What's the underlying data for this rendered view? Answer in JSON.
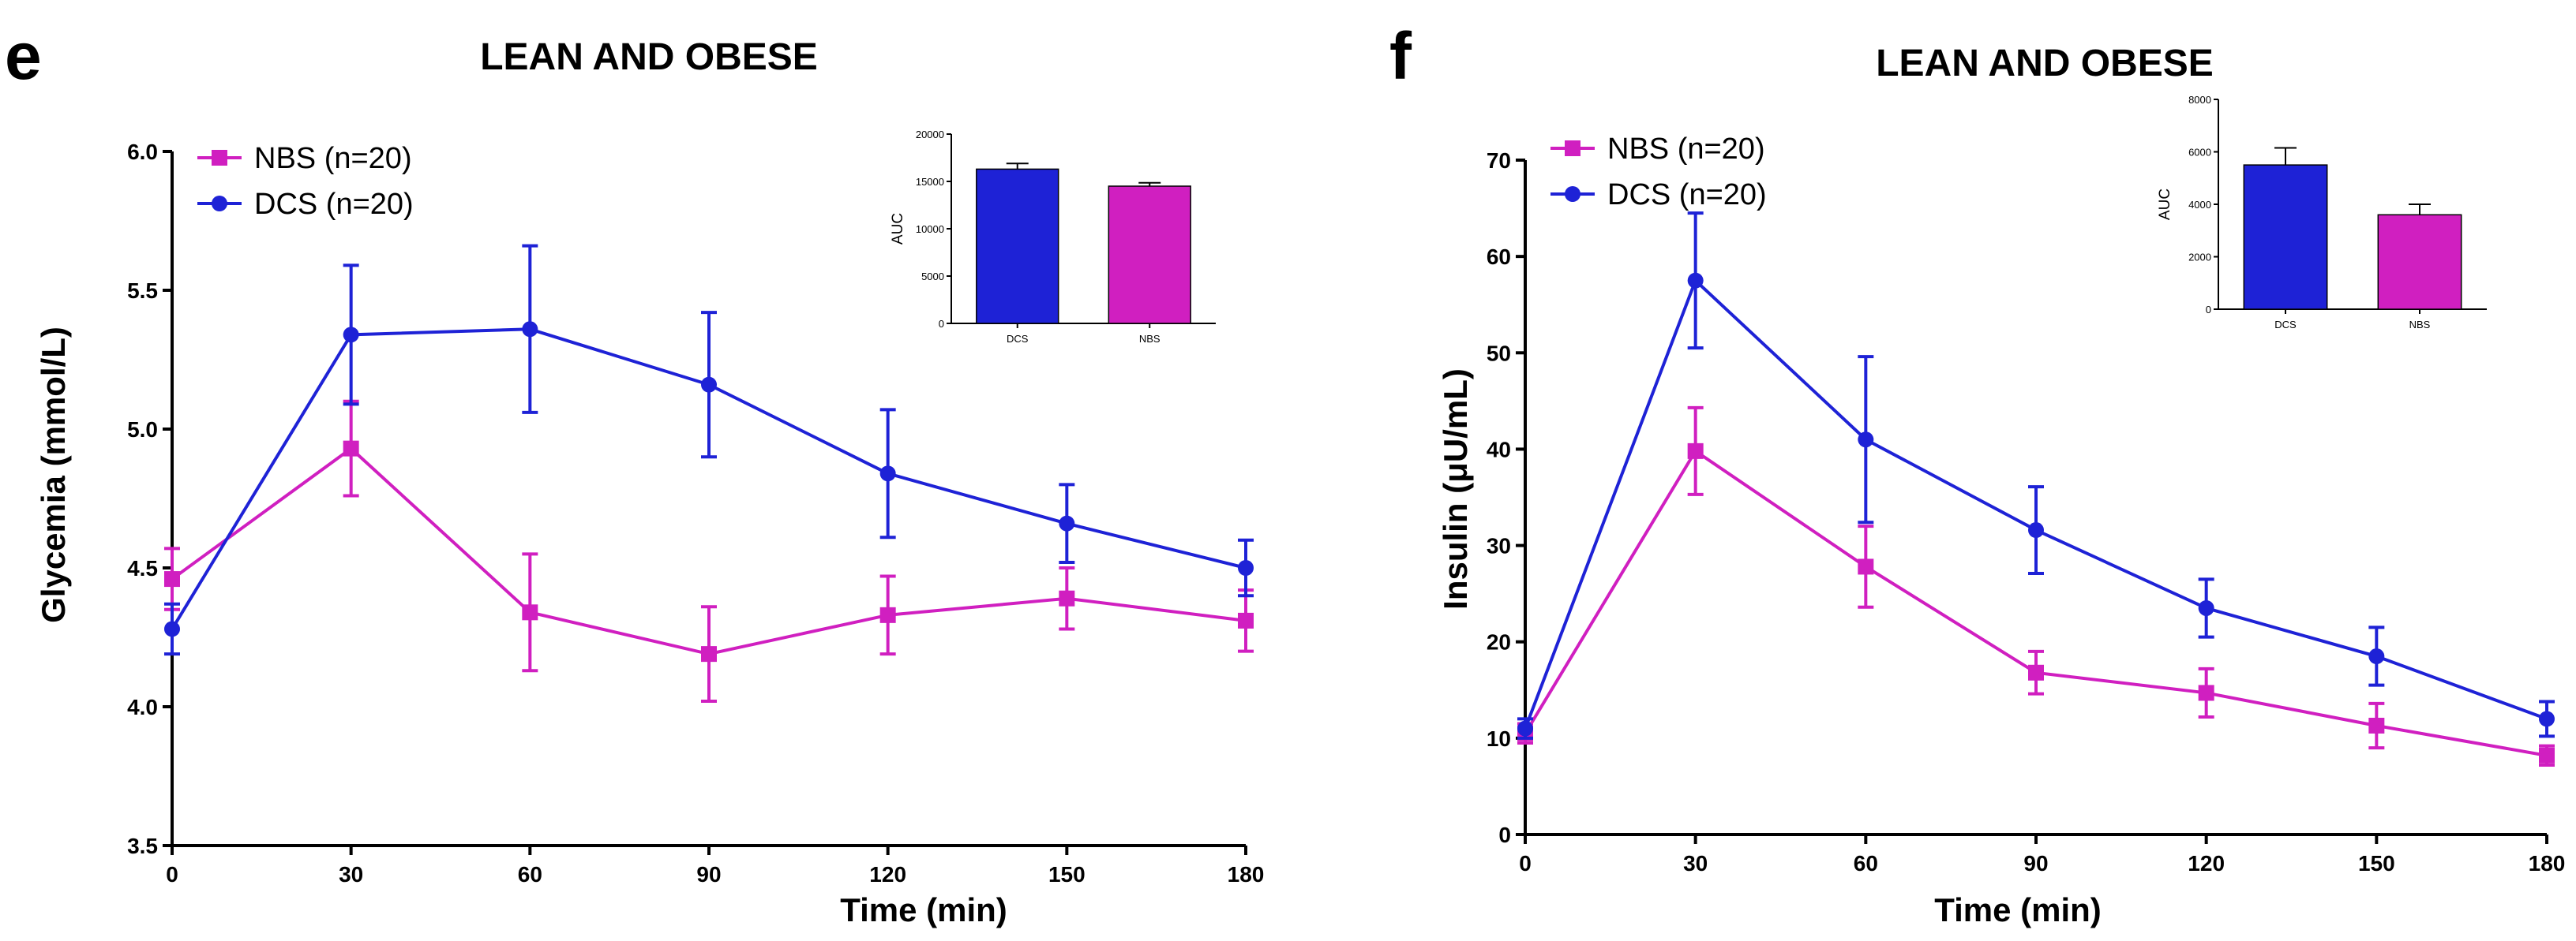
{
  "figure": {
    "panel_labels": [
      "e",
      "f"
    ]
  },
  "colors": {
    "nbs": "#d01fc0",
    "dcs": "#1e22d6"
  },
  "chart_data": [
    {
      "type": "line",
      "panel": "e",
      "title": "LEAN AND OBESE",
      "xlabel": "Time (min)",
      "ylabel": "Glycemia (mmol/L)",
      "x": [
        0,
        30,
        60,
        90,
        120,
        150,
        180
      ],
      "xticks": [
        "0",
        "30",
        "60",
        "90",
        "120",
        "150",
        "180"
      ],
      "xlim": [
        0,
        180
      ],
      "ylim": [
        3.5,
        6.0
      ],
      "yticks": [
        "3.5",
        "4.0",
        "4.5",
        "5.0",
        "5.5",
        "6.0"
      ],
      "legend_position": "top-left",
      "series": [
        {
          "name": "NBS (n=20)",
          "marker": "square",
          "color": "#d01fc0",
          "values": [
            4.46,
            4.93,
            4.34,
            4.19,
            4.33,
            4.39,
            4.31
          ],
          "errors": [
            0.11,
            0.17,
            0.21,
            0.17,
            0.14,
            0.11,
            0.11
          ]
        },
        {
          "name": "DCS (n=20)",
          "marker": "circle",
          "color": "#1e22d6",
          "values": [
            4.28,
            5.34,
            5.36,
            5.16,
            4.84,
            4.66,
            4.5
          ],
          "errors": [
            0.09,
            0.25,
            0.3,
            0.26,
            0.23,
            0.14,
            0.1
          ]
        }
      ],
      "inset": {
        "type": "bar",
        "ylabel": "AUC",
        "categories": [
          "DCS",
          "NBS"
        ],
        "values": [
          16300,
          14500
        ],
        "errors": [
          600,
          350
        ],
        "colors": [
          "#1e22d6",
          "#d01fc0"
        ],
        "ylim": [
          0,
          20000
        ],
        "yticks": [
          "0",
          "5000",
          "10000",
          "15000",
          "20000"
        ]
      }
    },
    {
      "type": "line",
      "panel": "f",
      "title": "LEAN AND OBESE",
      "xlabel": "Time (min)",
      "ylabel": "Insulin (μU/mL)",
      "x": [
        0,
        30,
        60,
        90,
        120,
        150,
        180
      ],
      "xticks": [
        "0",
        "30",
        "60",
        "90",
        "120",
        "150",
        "180"
      ],
      "xlim": [
        0,
        180
      ],
      "ylim": [
        0,
        70
      ],
      "yticks": [
        "0",
        "10",
        "20",
        "30",
        "40",
        "50",
        "60",
        "70"
      ],
      "legend_position": "top-left",
      "series": [
        {
          "name": "NBS (n=20)",
          "marker": "square",
          "color": "#d01fc0",
          "values": [
            10.5,
            39.8,
            27.8,
            16.8,
            14.7,
            11.3,
            8.2
          ],
          "errors": [
            1.0,
            4.5,
            4.2,
            2.2,
            2.5,
            2.3,
            1.0
          ]
        },
        {
          "name": "DCS (n=20)",
          "marker": "circle",
          "color": "#1e22d6",
          "values": [
            11.0,
            57.5,
            41.0,
            31.6,
            23.5,
            18.5,
            12.0
          ],
          "errors": [
            1.0,
            7.0,
            8.6,
            4.5,
            3.0,
            3.0,
            1.8
          ]
        }
      ],
      "inset": {
        "type": "bar",
        "ylabel": "AUC",
        "categories": [
          "DCS",
          "NBS"
        ],
        "values": [
          5500,
          3600
        ],
        "errors": [
          650,
          400
        ],
        "colors": [
          "#1e22d6",
          "#d01fc0"
        ],
        "ylim": [
          0,
          8000
        ],
        "yticks": [
          "0",
          "2000",
          "4000",
          "6000",
          "8000"
        ]
      }
    }
  ]
}
